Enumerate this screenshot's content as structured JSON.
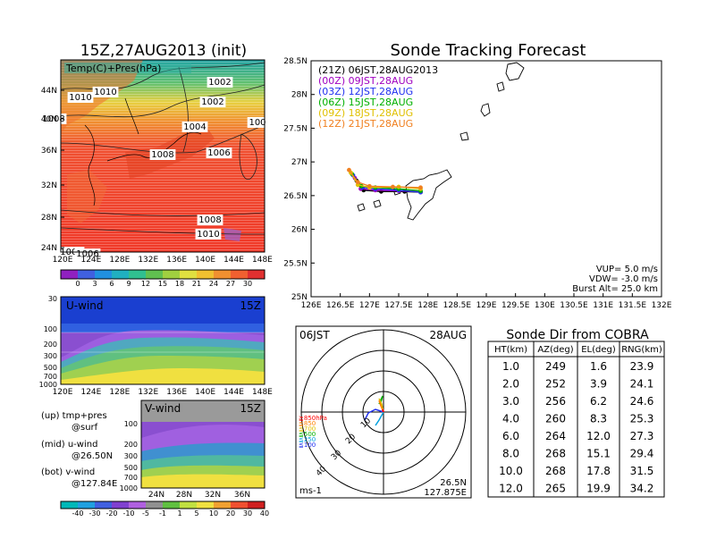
{
  "left": {
    "main_title": "15Z,27AUG2013 (init)",
    "map_label": "Temp(C)+Pres(hPa)",
    "lat_ticks": [
      "44N",
      "40N",
      "36N",
      "32N",
      "28N",
      "24N"
    ],
    "lon_ticks": [
      "120E",
      "124E",
      "128E",
      "132E",
      "136E",
      "140E",
      "144E",
      "148E"
    ],
    "isobars": [
      "1006",
      "1010",
      "1010",
      "1002",
      "1008",
      "1002",
      "1004",
      "100",
      "1008",
      "1006",
      "1008",
      "1010",
      "1006"
    ],
    "temp_colorbar": [
      "0",
      "3",
      "6",
      "9",
      "12",
      "15",
      "18",
      "21",
      "24",
      "27",
      "30"
    ],
    "uwind_title": "U-wind",
    "uwind_time": "15Z",
    "vwind_title": "V-wind",
    "vwind_time": "15Z",
    "pres_ticks": [
      "30",
      "100",
      "200",
      "300",
      "500",
      "700",
      "1000"
    ],
    "vwind_pres_ticks": [
      "100",
      "200",
      "300",
      "500",
      "700",
      "1000"
    ],
    "vwind_lat_ticks": [
      "24N",
      "28N",
      "32N",
      "36N"
    ],
    "wind_colorbar": [
      "-40",
      "-30",
      "-20",
      "-10",
      "-5",
      "-1",
      "1",
      "5",
      "10",
      "20",
      "30",
      "40"
    ],
    "legend": [
      {
        "a": "(up) tmp+pres",
        "b": "@surf"
      },
      {
        "a": "(mid) u-wind",
        "b": "@26.50N"
      },
      {
        "a": "(bot) v-wind",
        "b": "@127.84E"
      }
    ]
  },
  "tracking": {
    "title": "Sonde Tracking Forecast",
    "y_ticks": [
      "28.5N",
      "28N",
      "27.5N",
      "27N",
      "26.5N",
      "26N",
      "25.5N",
      "25N"
    ],
    "x_ticks": [
      "126E",
      "126.5E",
      "127E",
      "127.5E",
      "128E",
      "128.5E",
      "129E",
      "129.5E",
      "130E",
      "130.5E",
      "131E",
      "131.5E",
      "132E"
    ],
    "launches": [
      {
        "label": "(21Z)  06JST,28AUG2013",
        "color": "#000000"
      },
      {
        "label": "(00Z)  09JST,28AUG",
        "color": "#a000c0"
      },
      {
        "label": "(03Z)  12JST,28AUG",
        "color": "#2030f0"
      },
      {
        "label": "(06Z)  15JST,28AUG",
        "color": "#00b000"
      },
      {
        "label": "(09Z)  18JST,28AUG",
        "color": "#e0c000"
      },
      {
        "label": "(12Z)  21JST,28AUG",
        "color": "#f08020"
      }
    ],
    "info": [
      "VUP=  5.0  m/s",
      "VDW= -3.0  m/s",
      "Burst Alt=  25.0  km"
    ]
  },
  "polar": {
    "time": "06JST",
    "date": "28AUG",
    "levels": [
      "≧850hPa",
      "≦850",
      "≦700",
      "≦500",
      "≦250",
      "≦100"
    ],
    "level_colors": [
      "#ff0000",
      "#ff8000",
      "#e0c000",
      "#00b000",
      "#00a0e0",
      "#2030f0"
    ],
    "ring_labels": [
      "10",
      "20",
      "30",
      "40"
    ],
    "unit": "ms-1",
    "loc_lat": "26.5N",
    "loc_lon": "127.875E"
  },
  "table": {
    "title": "Sonde Dir from COBRA",
    "headers": [
      "HT(km)",
      "AZ(deg)",
      "EL(deg)",
      "RNG(km)"
    ],
    "rows": [
      [
        "1.0",
        "249",
        "1.6",
        "23.9"
      ],
      [
        "2.0",
        "252",
        "3.9",
        "24.1"
      ],
      [
        "3.0",
        "256",
        "6.2",
        "24.6"
      ],
      [
        "4.0",
        "260",
        "8.3",
        "25.3"
      ],
      [
        "6.0",
        "264",
        "12.0",
        "27.3"
      ],
      [
        "8.0",
        "268",
        "15.1",
        "29.4"
      ],
      [
        "10.0",
        "268",
        "17.8",
        "31.5"
      ],
      [
        "12.0",
        "265",
        "19.9",
        "34.2"
      ]
    ]
  },
  "chart_data": [
    {
      "type": "line",
      "title": "Sonde Tracking Forecast",
      "xlim": [
        126,
        132
      ],
      "ylim": [
        25,
        28.5
      ],
      "series": [
        {
          "name": "(21Z)  06JST,28AUG2013",
          "x": [
            127.875,
            127.6,
            127.2,
            126.9,
            126.78
          ],
          "y": [
            26.55,
            26.56,
            26.56,
            26.58,
            26.72
          ]
        },
        {
          "name": "(00Z)  09JST,28AUG",
          "x": [
            127.875,
            127.5,
            127.1,
            126.85,
            126.75
          ],
          "y": [
            26.56,
            26.57,
            26.58,
            26.6,
            26.76
          ]
        },
        {
          "name": "(03Z)  12JST,28AUG",
          "x": [
            127.875,
            127.5,
            127.1,
            126.88,
            126.72
          ],
          "y": [
            26.55,
            26.58,
            26.6,
            26.62,
            26.8
          ]
        },
        {
          "name": "(06Z)  15JST,28AUG",
          "x": [
            127.875,
            127.5,
            127.1,
            126.86,
            126.7
          ],
          "y": [
            26.57,
            26.6,
            26.62,
            26.64,
            26.82
          ]
        },
        {
          "name": "(09Z)  18JST,28AUG",
          "x": [
            127.875,
            127.5,
            127.0,
            126.8,
            126.68
          ],
          "y": [
            26.6,
            26.63,
            26.62,
            26.66,
            26.84
          ]
        },
        {
          "name": "(12Z)  21JST,28AUG",
          "x": [
            127.875,
            127.4,
            127.0,
            126.8,
            126.65
          ],
          "y": [
            26.62,
            26.63,
            26.64,
            26.7,
            26.88
          ]
        }
      ]
    },
    {
      "type": "table",
      "title": "Sonde Dir from COBRA",
      "columns": [
        "HT(km)",
        "AZ(deg)",
        "EL(deg)",
        "RNG(km)"
      ],
      "rows": [
        [
          1.0,
          249,
          1.6,
          23.9
        ],
        [
          2.0,
          252,
          3.9,
          24.1
        ],
        [
          3.0,
          256,
          6.2,
          24.6
        ],
        [
          4.0,
          260,
          8.3,
          25.3
        ],
        [
          6.0,
          264,
          12.0,
          27.3
        ],
        [
          8.0,
          268,
          15.1,
          29.4
        ],
        [
          10.0,
          268,
          17.8,
          31.5
        ],
        [
          12.0,
          265,
          19.9,
          34.2
        ]
      ]
    }
  ]
}
